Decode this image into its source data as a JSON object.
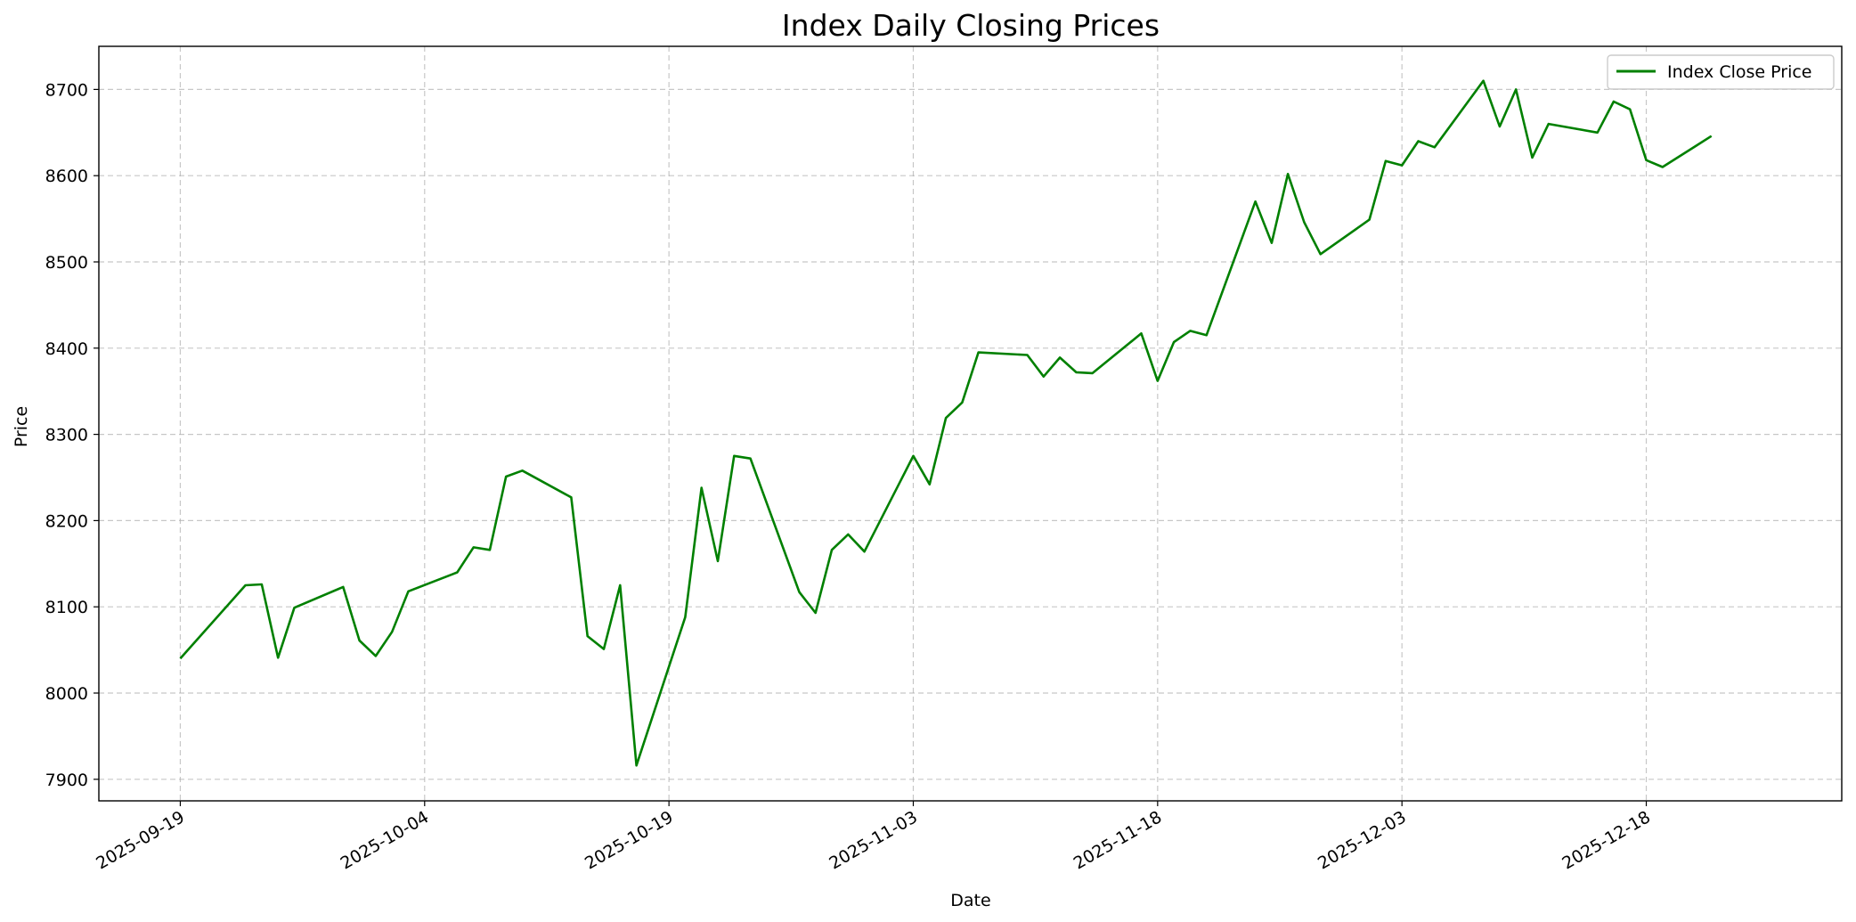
{
  "chart_data": {
    "type": "line",
    "title": "Index Daily Closing Prices",
    "xlabel": "Date",
    "ylabel": "Price",
    "x_axis": "date",
    "xlim": [
      "2025-09-14",
      "2025-12-30"
    ],
    "ylim": [
      7875,
      8750
    ],
    "yticks": [
      7900,
      8000,
      8100,
      8200,
      8300,
      8400,
      8500,
      8600,
      8700
    ],
    "xticks": [
      "2025-09-19",
      "2025-10-04",
      "2025-10-19",
      "2025-11-03",
      "2025-11-18",
      "2025-12-03",
      "2025-12-18"
    ],
    "grid": true,
    "legend_position": "top-right",
    "series": [
      {
        "name": "Index Close Price",
        "color": "#008000",
        "x": [
          "2025-09-19",
          "2025-09-23",
          "2025-09-24",
          "2025-09-25",
          "2025-09-26",
          "2025-09-29",
          "2025-09-30",
          "2025-10-01",
          "2025-10-02",
          "2025-10-03",
          "2025-10-06",
          "2025-10-07",
          "2025-10-08",
          "2025-10-09",
          "2025-10-10",
          "2025-10-13",
          "2025-10-14",
          "2025-10-15",
          "2025-10-16",
          "2025-10-17",
          "2025-10-20",
          "2025-10-21",
          "2025-10-22",
          "2025-10-23",
          "2025-10-24",
          "2025-10-27",
          "2025-10-28",
          "2025-10-29",
          "2025-10-30",
          "2025-10-31",
          "2025-11-03",
          "2025-11-04",
          "2025-11-05",
          "2025-11-06",
          "2025-11-07",
          "2025-11-10",
          "2025-11-11",
          "2025-11-12",
          "2025-11-13",
          "2025-11-14",
          "2025-11-17",
          "2025-11-18",
          "2025-11-19",
          "2025-11-20",
          "2025-11-21",
          "2025-11-24",
          "2025-11-25",
          "2025-11-26",
          "2025-11-27",
          "2025-11-28",
          "2025-12-01",
          "2025-12-02",
          "2025-12-03",
          "2025-12-04",
          "2025-12-05",
          "2025-12-08",
          "2025-12-09",
          "2025-12-10",
          "2025-12-11",
          "2025-12-12",
          "2025-12-15",
          "2025-12-16",
          "2025-12-17",
          "2025-12-18",
          "2025-12-19",
          "2025-12-22"
        ],
        "y": [
          8040,
          8125,
          8126,
          8041,
          8099,
          8123,
          8061,
          8043,
          8071,
          8118,
          8140,
          8169,
          8166,
          8251,
          8258,
          8227,
          8066,
          8051,
          8125,
          7916,
          8088,
          8238,
          8153,
          8275,
          8272,
          8117,
          8093,
          8166,
          8184,
          8164,
          8275,
          8242,
          8319,
          8337,
          8395,
          8392,
          8367,
          8389,
          8372,
          8371,
          8417,
          8362,
          8407,
          8420,
          8415,
          8570,
          8522,
          8602,
          8546,
          8509,
          8549,
          8617,
          8612,
          8640,
          8633,
          8710,
          8657,
          8700,
          8621,
          8660,
          8650,
          8686,
          8677,
          8618,
          8610,
          8646
        ]
      }
    ]
  }
}
